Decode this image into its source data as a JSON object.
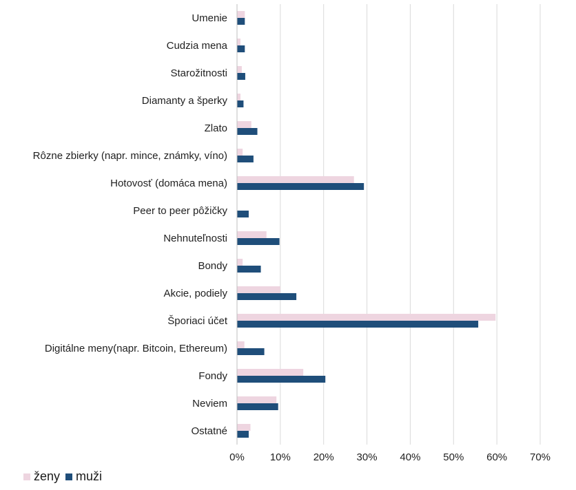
{
  "chart_data": {
    "type": "bar",
    "orientation": "horizontal",
    "categories": [
      "Umenie",
      "Cudzia mena",
      "Starožitnosti",
      "Diamanty a šperky",
      "Zlato",
      "Rôzne zbierky (napr. mince, známky, víno)",
      "Hotovosť (domáca mena)",
      "Peer to peer pôžičky",
      "Nehnuteľnosti",
      "Bondy",
      "Akcie, podiely",
      "Šporiaci účet",
      "Digitálne meny(napr. Bitcoin, Ethereum)",
      "Fondy",
      "Neviem",
      "Ostatné"
    ],
    "series": [
      {
        "name": "ženy",
        "color": "#eed5e0",
        "values": [
          1.8,
          0.8,
          1.1,
          0.8,
          3.3,
          1.3,
          27.0,
          0.0,
          6.8,
          1.3,
          10.0,
          59.7,
          1.7,
          15.3,
          9.1,
          3.1
        ]
      },
      {
        "name": "muži",
        "color": "#1f4e7a",
        "values": [
          1.8,
          1.8,
          1.9,
          1.5,
          4.7,
          3.8,
          29.3,
          2.7,
          9.8,
          5.5,
          13.7,
          55.7,
          6.3,
          20.4,
          9.5,
          2.7
        ]
      }
    ],
    "xlim": [
      0,
      70
    ],
    "xticks": [
      0,
      10,
      20,
      30,
      40,
      50,
      60,
      70
    ],
    "xtick_labels": [
      "0%",
      "10%",
      "20%",
      "30%",
      "40%",
      "50%",
      "60%",
      "70%"
    ],
    "grid": "vertical",
    "legend_position": "bottom-left",
    "title": "",
    "xlabel": "",
    "ylabel": ""
  },
  "legend": {
    "items": [
      {
        "label": "ženy",
        "color": "#eed5e0"
      },
      {
        "label": "muži",
        "color": "#1f4e7a"
      }
    ]
  },
  "colors": {
    "grid": "#d9d9d9",
    "axis": "#bfbfbf"
  }
}
